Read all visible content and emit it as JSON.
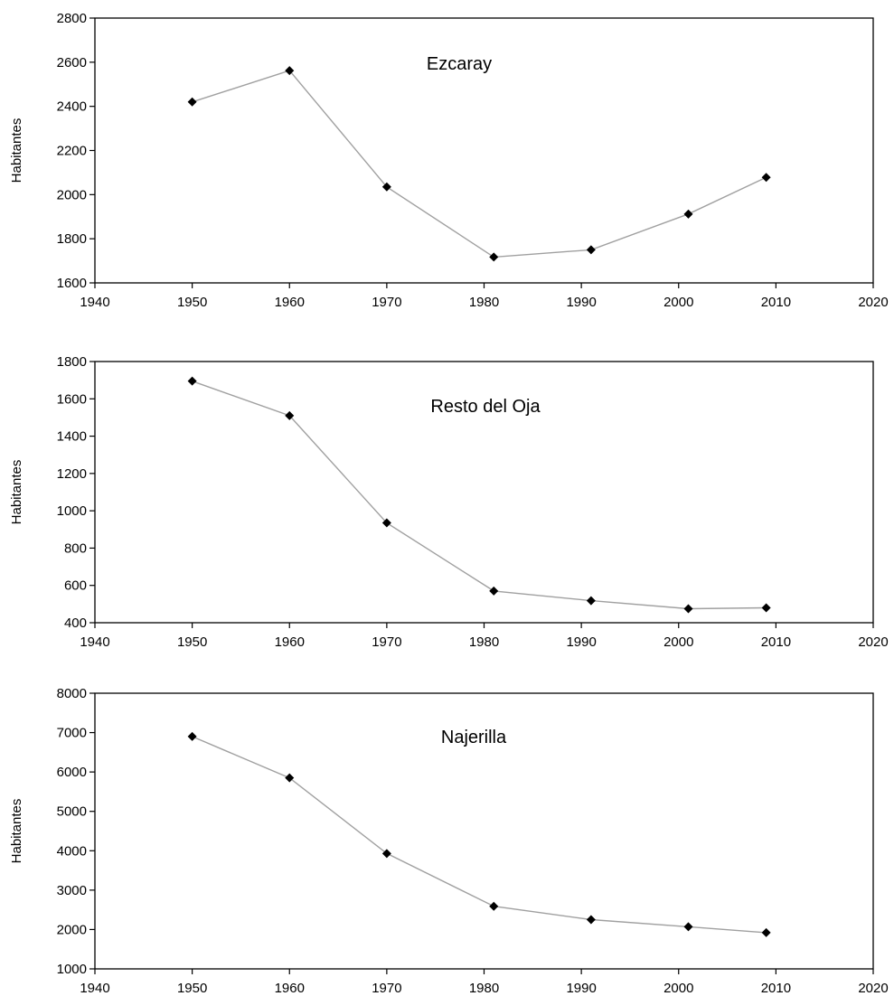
{
  "chart_data": [
    {
      "type": "line",
      "title": "Ezcaray",
      "xlabel": "",
      "ylabel": "Habitantes",
      "xlim": [
        1940,
        2020
      ],
      "ylim": [
        1600,
        2800
      ],
      "xticks": [
        "1940",
        "1950",
        "1960",
        "1970",
        "1980",
        "1990",
        "2000",
        "2010",
        "2020"
      ],
      "yticks": [
        "1600",
        "1800",
        "2000",
        "2200",
        "2400",
        "2600",
        "2800"
      ],
      "grid": false,
      "series": [
        {
          "x": [
            1950,
            1960,
            1970,
            1981,
            1991,
            2001,
            2009
          ],
          "y": [
            2420,
            2562,
            2035,
            1717,
            1750,
            1912,
            2078
          ]
        }
      ]
    },
    {
      "type": "line",
      "title": "Resto del Oja",
      "xlabel": "",
      "ylabel": "Habitantes",
      "xlim": [
        1940,
        2020
      ],
      "ylim": [
        400,
        1800
      ],
      "xticks": [
        "1940",
        "1950",
        "1960",
        "1970",
        "1980",
        "1990",
        "2000",
        "2010",
        "2020"
      ],
      "yticks": [
        "400",
        "600",
        "800",
        "1000",
        "1200",
        "1400",
        "1600",
        "1800"
      ],
      "grid": false,
      "series": [
        {
          "x": [
            1950,
            1960,
            1970,
            1981,
            1991,
            2001,
            2009
          ],
          "y": [
            1695,
            1510,
            935,
            570,
            518,
            475,
            480
          ]
        }
      ]
    },
    {
      "type": "line",
      "title": "Najerilla",
      "xlabel": "",
      "ylabel": "Habitantes",
      "xlim": [
        1940,
        2020
      ],
      "ylim": [
        1000,
        8000
      ],
      "xticks": [
        "1940",
        "1950",
        "1960",
        "1970",
        "1980",
        "1990",
        "2000",
        "2010",
        "2020"
      ],
      "yticks": [
        "1000",
        "2000",
        "3000",
        "4000",
        "5000",
        "6000",
        "7000",
        "8000"
      ],
      "grid": false,
      "series": [
        {
          "x": [
            1950,
            1960,
            1970,
            1981,
            1991,
            2001,
            2009
          ],
          "y": [
            6900,
            5850,
            3930,
            2590,
            2250,
            2070,
            1920
          ]
        }
      ]
    }
  ],
  "style": {
    "line_color": "#a0a0a0",
    "marker_color": "#000000",
    "axis_color": "#000000",
    "marker_shape": "diamond"
  }
}
